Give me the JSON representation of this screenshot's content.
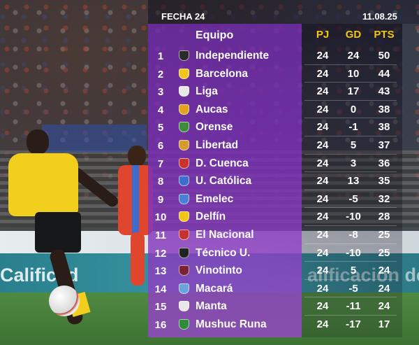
{
  "header": {
    "round": "FECHA 24",
    "date": "11.08.25",
    "col_team": "Equipo",
    "col_pj": "PJ",
    "col_gd": "GD",
    "col_pts": "PTS"
  },
  "background": {
    "ad_left": "Calificad",
    "ad_right": "alificación de Riego"
  },
  "standings": [
    {
      "pos": "1",
      "team": "Independiente",
      "pj": "24",
      "gd": "24",
      "pts": "50",
      "crest_color": "#2b2b2b"
    },
    {
      "pos": "2",
      "team": "Barcelona",
      "pj": "24",
      "gd": "10",
      "pts": "44",
      "crest_color": "#f2c618"
    },
    {
      "pos": "3",
      "team": "Liga",
      "pj": "24",
      "gd": "17",
      "pts": "43",
      "crest_color": "#e8e8e8"
    },
    {
      "pos": "4",
      "team": "Aucas",
      "pj": "24",
      "gd": "0",
      "pts": "38",
      "crest_color": "#e2a21c"
    },
    {
      "pos": "5",
      "team": "Orense",
      "pj": "24",
      "gd": "-1",
      "pts": "38",
      "crest_color": "#3f8a3c"
    },
    {
      "pos": "6",
      "team": "Libertad",
      "pj": "24",
      "gd": "5",
      "pts": "37",
      "crest_color": "#d69b2a"
    },
    {
      "pos": "7",
      "team": "D. Cuenca",
      "pj": "24",
      "gd": "3",
      "pts": "36",
      "crest_color": "#c9332a"
    },
    {
      "pos": "8",
      "team": "U. Católica",
      "pj": "24",
      "gd": "13",
      "pts": "35",
      "crest_color": "#3a6fd1"
    },
    {
      "pos": "9",
      "team": "Emelec",
      "pj": "24",
      "gd": "-5",
      "pts": "32",
      "crest_color": "#4a7fd6"
    },
    {
      "pos": "10",
      "team": "Delfín",
      "pj": "24",
      "gd": "-10",
      "pts": "28",
      "crest_color": "#f2c618"
    },
    {
      "pos": "11",
      "team": "El Nacional",
      "pj": "24",
      "gd": "-8",
      "pts": "25",
      "crest_color": "#c93030"
    },
    {
      "pos": "12",
      "team": "Técnico U.",
      "pj": "24",
      "gd": "-10",
      "pts": "25",
      "crest_color": "#222222"
    },
    {
      "pos": "13",
      "team": "Vinotinto",
      "pj": "24",
      "gd": "5",
      "pts": "24",
      "crest_color": "#7a2233"
    },
    {
      "pos": "14",
      "team": "Macará",
      "pj": "24",
      "gd": "-5",
      "pts": "24",
      "crest_color": "#6aa3e0"
    },
    {
      "pos": "15",
      "team": "Manta",
      "pj": "24",
      "gd": "-11",
      "pts": "24",
      "crest_color": "#e8e8e8"
    },
    {
      "pos": "16",
      "team": "Mushuc Runa",
      "pj": "24",
      "gd": "-17",
      "pts": "17",
      "crest_color": "#2f8a3a"
    }
  ]
}
